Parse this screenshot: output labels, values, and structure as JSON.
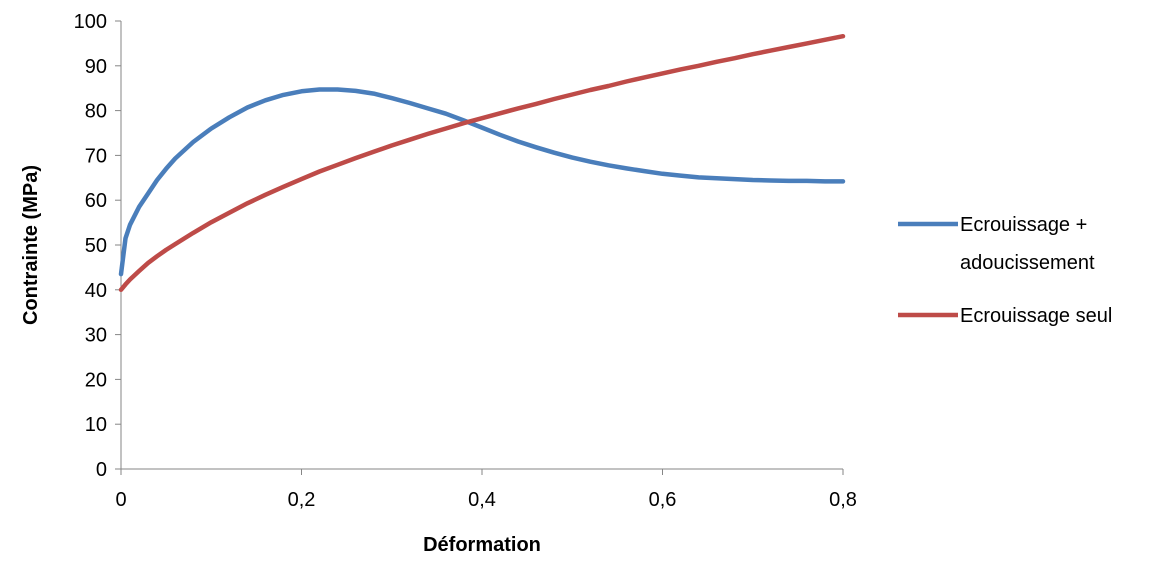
{
  "chart_data": {
    "type": "line",
    "title": "",
    "xlabel": "Déformation",
    "ylabel": "Contrainte (MPa)",
    "xlim": [
      0,
      0.8
    ],
    "ylim": [
      0,
      100
    ],
    "x_ticks": [
      0,
      0.2,
      0.4,
      0.6,
      0.8
    ],
    "x_tick_labels": [
      "0",
      "0,2",
      "0,4",
      "0,6",
      "0,8"
    ],
    "y_ticks": [
      0,
      10,
      20,
      30,
      40,
      50,
      60,
      70,
      80,
      90,
      100
    ],
    "y_tick_labels": [
      "0",
      "10",
      "20",
      "30",
      "40",
      "50",
      "60",
      "70",
      "80",
      "90",
      "100"
    ],
    "grid": false,
    "legend_position": "right",
    "series": [
      {
        "name": "Ecrouissage + adoucissement",
        "legend_lines": [
          "Ecrouissage +",
          "adoucissement"
        ],
        "color": "#4a7ebb",
        "x": [
          0,
          0.005,
          0.01,
          0.02,
          0.03,
          0.04,
          0.05,
          0.06,
          0.08,
          0.1,
          0.12,
          0.14,
          0.16,
          0.18,
          0.2,
          0.22,
          0.24,
          0.26,
          0.28,
          0.3,
          0.32,
          0.34,
          0.36,
          0.38,
          0.4,
          0.42,
          0.44,
          0.46,
          0.48,
          0.5,
          0.52,
          0.54,
          0.56,
          0.58,
          0.6,
          0.62,
          0.64,
          0.66,
          0.68,
          0.7,
          0.72,
          0.74,
          0.76,
          0.78,
          0.8
        ],
        "y": [
          43.5,
          51.5,
          54.5,
          58.5,
          61.5,
          64.5,
          67,
          69.3,
          73,
          76,
          78.5,
          80.7,
          82.3,
          83.5,
          84.3,
          84.7,
          84.7,
          84.4,
          83.8,
          82.8,
          81.7,
          80.5,
          79.3,
          77.8,
          76.2,
          74.6,
          73.1,
          71.8,
          70.6,
          69.5,
          68.6,
          67.8,
          67.1,
          66.5,
          65.9,
          65.5,
          65.1,
          64.9,
          64.7,
          64.5,
          64.4,
          64.3,
          64.3,
          64.2,
          64.2
        ]
      },
      {
        "name": "Ecrouissage seul",
        "legend_lines": [
          "Ecrouissage seul"
        ],
        "color": "#be4b48",
        "x": [
          0,
          0.005,
          0.01,
          0.02,
          0.03,
          0.04,
          0.05,
          0.06,
          0.08,
          0.1,
          0.12,
          0.14,
          0.16,
          0.18,
          0.2,
          0.22,
          0.24,
          0.26,
          0.28,
          0.3,
          0.32,
          0.34,
          0.36,
          0.38,
          0.4,
          0.42,
          0.44,
          0.46,
          0.48,
          0.5,
          0.52,
          0.54,
          0.56,
          0.58,
          0.6,
          0.62,
          0.64,
          0.66,
          0.68,
          0.7,
          0.72,
          0.74,
          0.76,
          0.78,
          0.8
        ],
        "y": [
          40,
          41.2,
          42.3,
          44.2,
          46,
          47.5,
          48.9,
          50.2,
          52.7,
          55.1,
          57.2,
          59.3,
          61.2,
          63,
          64.7,
          66.4,
          67.9,
          69.4,
          70.8,
          72.2,
          73.5,
          74.8,
          76,
          77.2,
          78.3,
          79.4,
          80.5,
          81.5,
          82.6,
          83.6,
          84.6,
          85.5,
          86.5,
          87.4,
          88.3,
          89.2,
          90,
          90.9,
          91.7,
          92.6,
          93.4,
          94.2,
          95,
          95.8,
          96.6
        ]
      }
    ]
  }
}
